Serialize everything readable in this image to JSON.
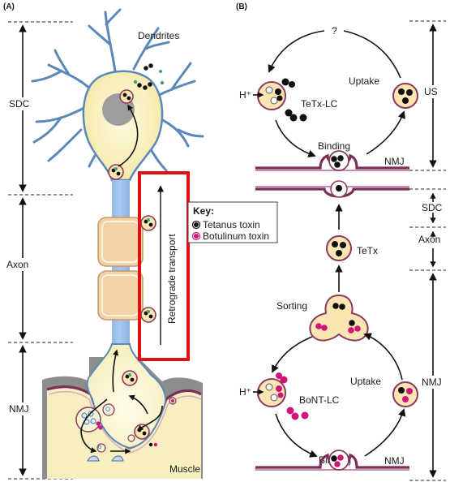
{
  "panels": {
    "a": "(A)",
    "b": "(B)"
  },
  "left_regions": {
    "sdc": "SDC",
    "axon": "Axon",
    "nmj": "NMJ"
  },
  "neuron_labels": {
    "dendrites": "Dendrites",
    "muscle": "Muscle",
    "transport": "Retrograde transport"
  },
  "key": {
    "title": "Key:",
    "tetanus": "Tetanus toxin",
    "botulinum": "Botulinum toxin"
  },
  "b_top": {
    "question": "?",
    "proton": "H⁺",
    "tetx_lc": "TeTx-LC",
    "uptake": "Uptake",
    "binding": "Binding",
    "nmj": "NMJ",
    "us": "US"
  },
  "b_mid": {
    "sdc": "SDC",
    "tetx": "TeTx",
    "axon": "Axon"
  },
  "b_bottom": {
    "sorting": "Sorting",
    "proton": "H⁺",
    "bont_lc": "BoNT-LC",
    "uptake": "Uptake",
    "binding": "Binding",
    "nmj": "NMJ",
    "right_nmj": "NMJ"
  },
  "colors": {
    "tetanus": "#111111",
    "botulinum": "#d1147a",
    "red_box": "#e01010",
    "dendrite": "#5b88b8",
    "axon": "#6f9fd6"
  }
}
